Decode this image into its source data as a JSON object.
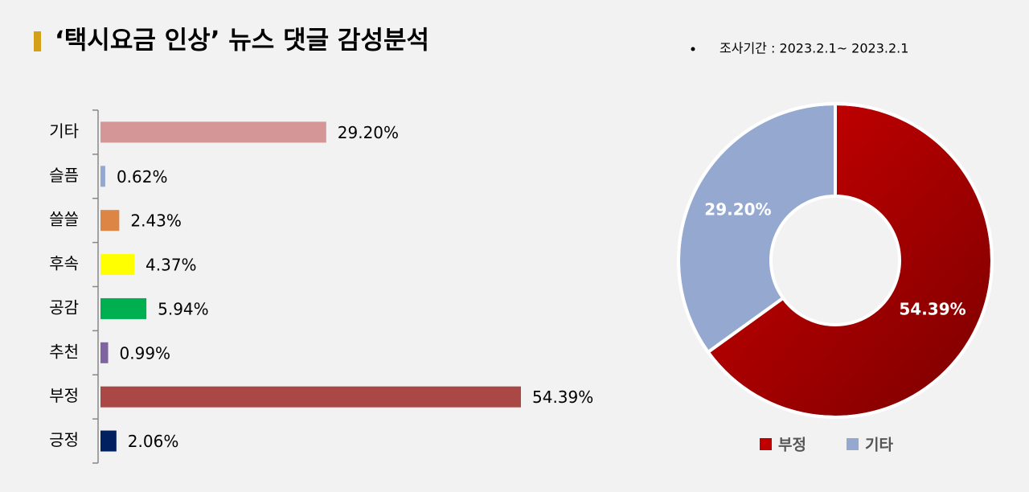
{
  "title": "‘택시요금 인상’ 뉴스 댓글 감성분석",
  "note": "조사기간 : 2023.2.1~ 2023.2.1",
  "chart_data": [
    {
      "type": "hbar",
      "categories": [
        "기타",
        "슬픔",
        "쓸쓸",
        "후속",
        "공감",
        "추천",
        "부정",
        "긍정"
      ],
      "values": [
        29.2,
        0.62,
        2.43,
        4.37,
        5.94,
        0.99,
        54.39,
        2.06
      ],
      "value_labels": [
        "29.20%",
        "0.62%",
        "2.43%",
        "4.37%",
        "5.94%",
        "0.99%",
        "54.39%",
        "2.06%"
      ],
      "colors": [
        "#d49696",
        "#95a9d0",
        "#dd8545",
        "#ffff00",
        "#00b050",
        "#8064a2",
        "#a94845",
        "#002060"
      ]
    },
    {
      "type": "donut",
      "categories": [
        "부정",
        "기타"
      ],
      "values": [
        54.39,
        29.2
      ],
      "value_labels": [
        "54.39%",
        "29.20%"
      ],
      "colors": [
        "#c00000",
        "#95a9d0"
      ],
      "legend": "bottom"
    }
  ]
}
